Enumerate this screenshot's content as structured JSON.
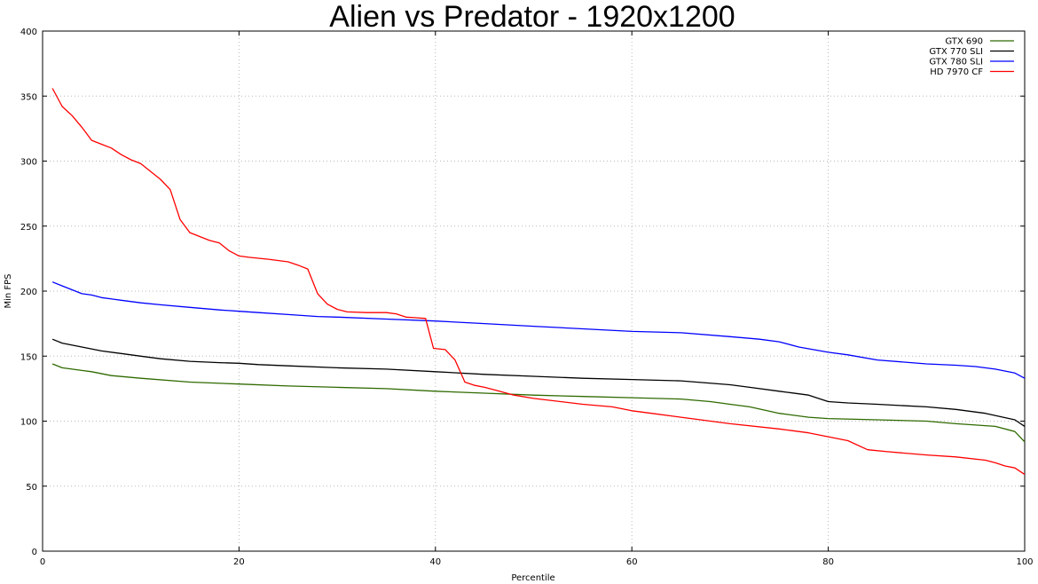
{
  "chart_data": {
    "type": "line",
    "title": "Alien vs Predator - 1920x1200",
    "xlabel": "Percentile",
    "ylabel": "Min FPS",
    "xlim": [
      0,
      100
    ],
    "ylim": [
      0,
      400
    ],
    "x_ticks": [
      0,
      20,
      40,
      60,
      80,
      100
    ],
    "y_ticks": [
      0,
      50,
      100,
      150,
      200,
      250,
      300,
      350,
      400
    ],
    "grid": true,
    "legend_position": "top-right",
    "series": [
      {
        "name": "GTX 690",
        "color": "#2f6a00",
        "points": [
          [
            1,
            144
          ],
          [
            2,
            141
          ],
          [
            3,
            140
          ],
          [
            4,
            139
          ],
          [
            5,
            138
          ],
          [
            7,
            135
          ],
          [
            10,
            133
          ],
          [
            15,
            130
          ],
          [
            20,
            128.5
          ],
          [
            25,
            127
          ],
          [
            30,
            126
          ],
          [
            35,
            125
          ],
          [
            40,
            123
          ],
          [
            45,
            121.5
          ],
          [
            50,
            120
          ],
          [
            55,
            119
          ],
          [
            60,
            118
          ],
          [
            65,
            117
          ],
          [
            68,
            115
          ],
          [
            70,
            113
          ],
          [
            72,
            111
          ],
          [
            75,
            106
          ],
          [
            78,
            103
          ],
          [
            80,
            102
          ],
          [
            85,
            101
          ],
          [
            90,
            100
          ],
          [
            93,
            98
          ],
          [
            97,
            96
          ],
          [
            99,
            92
          ],
          [
            100,
            84
          ]
        ]
      },
      {
        "name": "GTX 770 SLI",
        "color": "#000000",
        "points": [
          [
            1,
            163
          ],
          [
            2,
            160
          ],
          [
            4,
            157
          ],
          [
            6,
            154
          ],
          [
            8,
            152
          ],
          [
            10,
            150
          ],
          [
            12,
            148
          ],
          [
            15,
            146
          ],
          [
            18,
            145
          ],
          [
            20,
            144.5
          ],
          [
            22,
            143.5
          ],
          [
            25,
            142.5
          ],
          [
            30,
            141
          ],
          [
            35,
            140
          ],
          [
            40,
            138
          ],
          [
            45,
            136
          ],
          [
            50,
            134.5
          ],
          [
            55,
            133
          ],
          [
            60,
            132
          ],
          [
            65,
            131
          ],
          [
            70,
            128
          ],
          [
            72,
            126
          ],
          [
            75,
            123
          ],
          [
            78,
            120
          ],
          [
            80,
            115
          ],
          [
            82,
            114
          ],
          [
            85,
            113
          ],
          [
            90,
            111
          ],
          [
            93,
            109
          ],
          [
            96,
            106
          ],
          [
            99,
            101
          ],
          [
            100,
            96
          ]
        ]
      },
      {
        "name": "GTX 780 SLI",
        "color": "#0000ff",
        "points": [
          [
            1,
            207
          ],
          [
            2,
            204
          ],
          [
            3,
            201
          ],
          [
            4,
            198
          ],
          [
            5,
            197
          ],
          [
            6,
            195
          ],
          [
            8,
            193
          ],
          [
            10,
            191
          ],
          [
            12,
            189.5
          ],
          [
            15,
            187.5
          ],
          [
            18,
            185.5
          ],
          [
            20,
            184.5
          ],
          [
            22,
            183.5
          ],
          [
            25,
            182
          ],
          [
            28,
            180.5
          ],
          [
            30,
            180
          ],
          [
            35,
            178.5
          ],
          [
            40,
            177
          ],
          [
            45,
            175
          ],
          [
            50,
            173
          ],
          [
            55,
            171
          ],
          [
            60,
            169
          ],
          [
            65,
            168
          ],
          [
            70,
            165
          ],
          [
            73,
            163
          ],
          [
            75,
            161
          ],
          [
            77,
            157
          ],
          [
            80,
            153
          ],
          [
            82,
            151
          ],
          [
            85,
            147
          ],
          [
            90,
            144
          ],
          [
            93,
            143
          ],
          [
            95,
            142
          ],
          [
            97,
            140
          ],
          [
            99,
            137
          ],
          [
            100,
            133
          ]
        ]
      },
      {
        "name": "HD 7970 CF",
        "color": "#ff0000",
        "points": [
          [
            1,
            356
          ],
          [
            2,
            342
          ],
          [
            3,
            335
          ],
          [
            4,
            326
          ],
          [
            5,
            316
          ],
          [
            6,
            313
          ],
          [
            7,
            310
          ],
          [
            8,
            305
          ],
          [
            9,
            301
          ],
          [
            10,
            298
          ],
          [
            11,
            292
          ],
          [
            12,
            286
          ],
          [
            13,
            278
          ],
          [
            14,
            255
          ],
          [
            15,
            245
          ],
          [
            16,
            242
          ],
          [
            17,
            239
          ],
          [
            18,
            237
          ],
          [
            19,
            231
          ],
          [
            20,
            227
          ],
          [
            21,
            226
          ],
          [
            23,
            224.5
          ],
          [
            25,
            222.5
          ],
          [
            26,
            220
          ],
          [
            27,
            217
          ],
          [
            28,
            198
          ],
          [
            29,
            190
          ],
          [
            30,
            186
          ],
          [
            31,
            184
          ],
          [
            33,
            183.5
          ],
          [
            35,
            183.5
          ],
          [
            36,
            182.5
          ],
          [
            37,
            180
          ],
          [
            38,
            179.5
          ],
          [
            39,
            179
          ],
          [
            39.8,
            156
          ],
          [
            41,
            155
          ],
          [
            42,
            147
          ],
          [
            43,
            130
          ],
          [
            44,
            127.5
          ],
          [
            45,
            126
          ],
          [
            46,
            124
          ],
          [
            48,
            120
          ],
          [
            50,
            117.5
          ],
          [
            55,
            113
          ],
          [
            58,
            111
          ],
          [
            60,
            108
          ],
          [
            62,
            106
          ],
          [
            65,
            103
          ],
          [
            70,
            98
          ],
          [
            75,
            94
          ],
          [
            78,
            91
          ],
          [
            80,
            88
          ],
          [
            82,
            85
          ],
          [
            84,
            78
          ],
          [
            86,
            76.5
          ],
          [
            90,
            74
          ],
          [
            93,
            72.5
          ],
          [
            96,
            70
          ],
          [
            97,
            68
          ],
          [
            98,
            65.5
          ],
          [
            99,
            64
          ],
          [
            100,
            59
          ]
        ]
      }
    ]
  }
}
